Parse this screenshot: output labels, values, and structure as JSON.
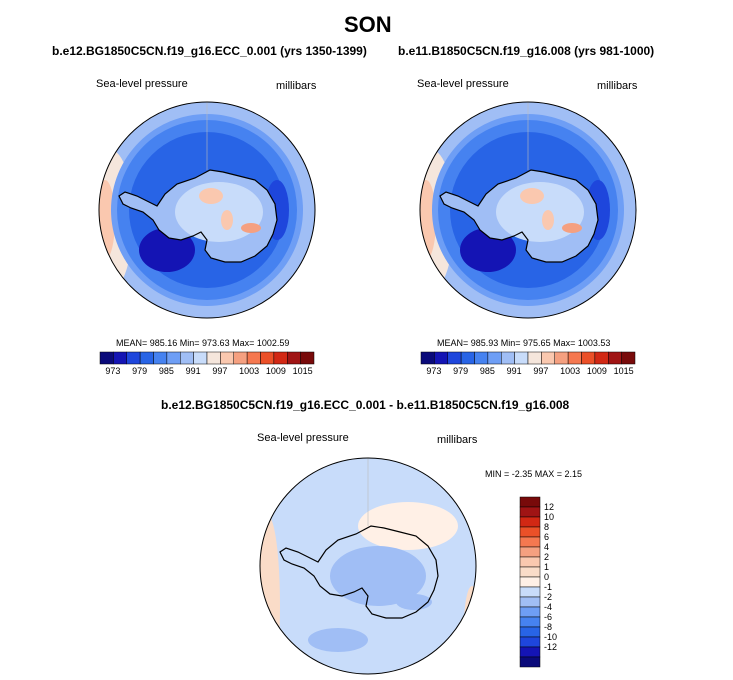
{
  "page_title": "SON",
  "colors": {
    "ramp_full": [
      "#0a0a7a",
      "#1414b4",
      "#1e46dc",
      "#2864e6",
      "#4682f0",
      "#6e9ef5",
      "#a0bef5",
      "#c8dcfa",
      "#f5e6dc",
      "#fac8af",
      "#f5a080",
      "#f57850",
      "#eb5028",
      "#d22814",
      "#a01414",
      "#780a0a"
    ],
    "diff_ramp": [
      "#0a0a7a",
      "#1414b4",
      "#1e46dc",
      "#2864e6",
      "#4682f0",
      "#6e9ef5",
      "#a0bef5",
      "#c8dcfa",
      "#fff0e6",
      "#fadcc8",
      "#fac8af",
      "#f5a080",
      "#f57850",
      "#eb5028",
      "#d22814",
      "#a01414",
      "#780a0a"
    ]
  },
  "panels": [
    {
      "case_title": "b.e12.BG1850C5CN.f19_g16.ECC_0.001 (yrs 1350-1399)",
      "variable": "Sea-level pressure",
      "units": "millibars",
      "stats": "MEAN= 985.16   Min= 973.63   Max= 1002.59"
    },
    {
      "case_title": "b.e11.B1850C5CN.f19_g16.008 (yrs 981-1000)",
      "variable": "Sea-level pressure",
      "units": "millibars",
      "stats": "MEAN= 985.93   Min= 975.65   Max= 1003.53"
    }
  ],
  "diff_panel": {
    "case_title": "b.e12.BG1850C5CN.f19_g16.ECC_0.001 - b.e11.B1850C5CN.f19_g16.008",
    "variable": "Sea-level pressure",
    "units": "millibars",
    "stats": "MIN = -2.35  MAX =  2.15"
  },
  "chart_data": [
    {
      "type": "heatmap",
      "title": "b.e12.BG1850C5CN.f19_g16.ECC_0.001 (yrs 1350-1399)",
      "subtitle": "Sea-level pressure",
      "units": "millibars",
      "colorbar_ticks": [
        "973",
        "979",
        "985",
        "991",
        "997",
        "1003",
        "1009",
        "1015"
      ],
      "mean": 985.16,
      "min": 973.63,
      "max": 1002.59
    },
    {
      "type": "heatmap",
      "title": "b.e11.B1850C5CN.f19_g16.008 (yrs 981-1000)",
      "subtitle": "Sea-level pressure",
      "units": "millibars",
      "colorbar_ticks": [
        "973",
        "979",
        "985",
        "991",
        "997",
        "1003",
        "1009",
        "1015"
      ],
      "mean": 985.93,
      "min": 975.65,
      "max": 1003.53
    },
    {
      "type": "heatmap",
      "title": "b.e12.BG1850C5CN.f19_g16.ECC_0.001 - b.e11.B1850C5CN.f19_g16.008",
      "subtitle": "Sea-level pressure",
      "units": "millibars",
      "colorbar_ticks": [
        "12",
        "10",
        "8",
        "6",
        "4",
        "2",
        "1",
        "0",
        "-1",
        "-2",
        "-4",
        "-6",
        "-8",
        "-10",
        "-12"
      ],
      "min": -2.35,
      "max": 2.15
    }
  ]
}
